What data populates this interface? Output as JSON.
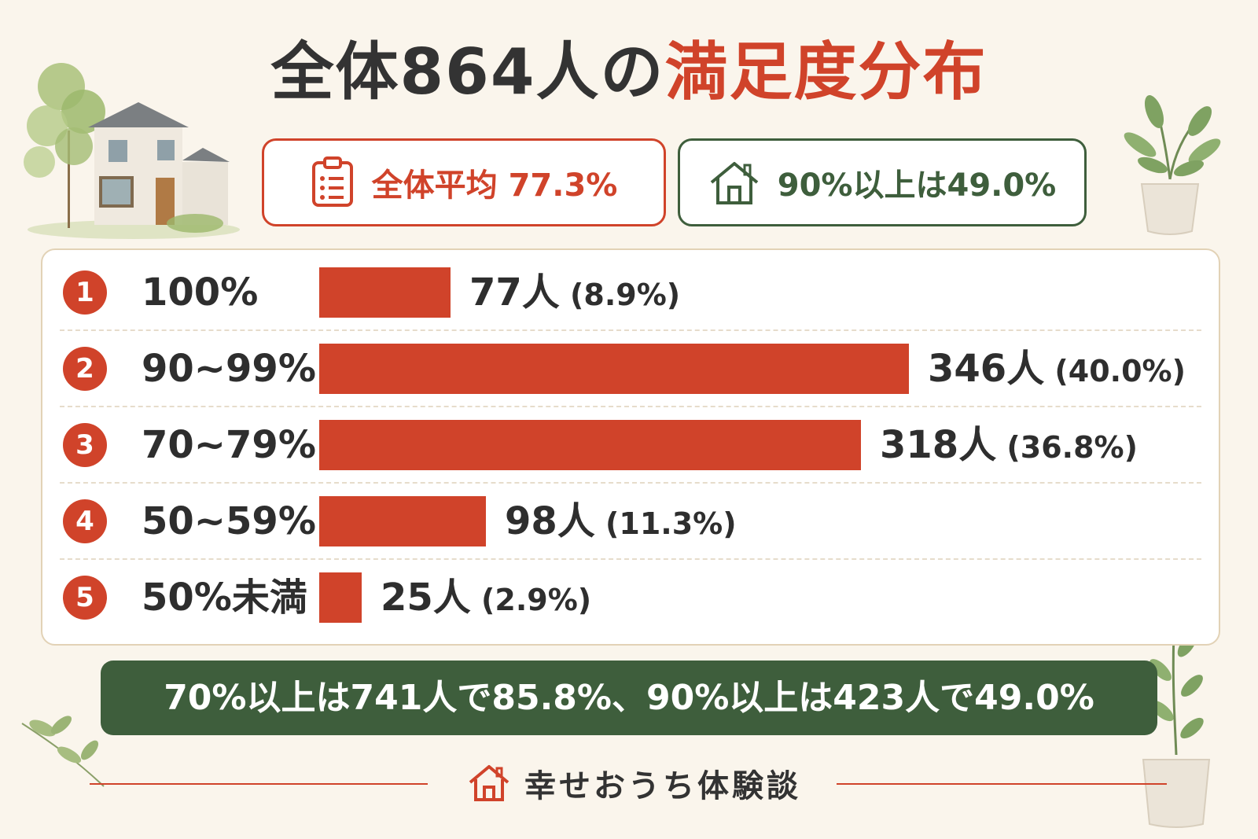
{
  "title": {
    "part1": "全体864人の",
    "part2": "満足度分布"
  },
  "summary": {
    "average_label": "全体平均",
    "average_value": "77.3%",
    "high_label": "90%以上は",
    "high_value": "49.0%"
  },
  "chart_data": {
    "type": "bar",
    "orientation": "horizontal",
    "categories": [
      "100%",
      "90~99%",
      "70~79%",
      "50~59%",
      "50%未満"
    ],
    "ranks": [
      "1",
      "2",
      "3",
      "4",
      "5"
    ],
    "values": [
      77,
      346,
      318,
      98,
      25
    ],
    "percents": [
      "8.9%",
      "40.0%",
      "36.8%",
      "11.3%",
      "2.9%"
    ],
    "unit": "人",
    "bar_color": "#d0432a"
  },
  "note": "70%以上は741人で85.8%、90%以上は423人で49.0%",
  "footer": {
    "brand": "幸せおうち体験談"
  },
  "colors": {
    "accent": "#d0432a",
    "green": "#3e5e3c",
    "background": "#faf5ec"
  },
  "icons": {
    "average": "clipboard-icon",
    "high": "house-icon",
    "brand": "house-icon"
  }
}
